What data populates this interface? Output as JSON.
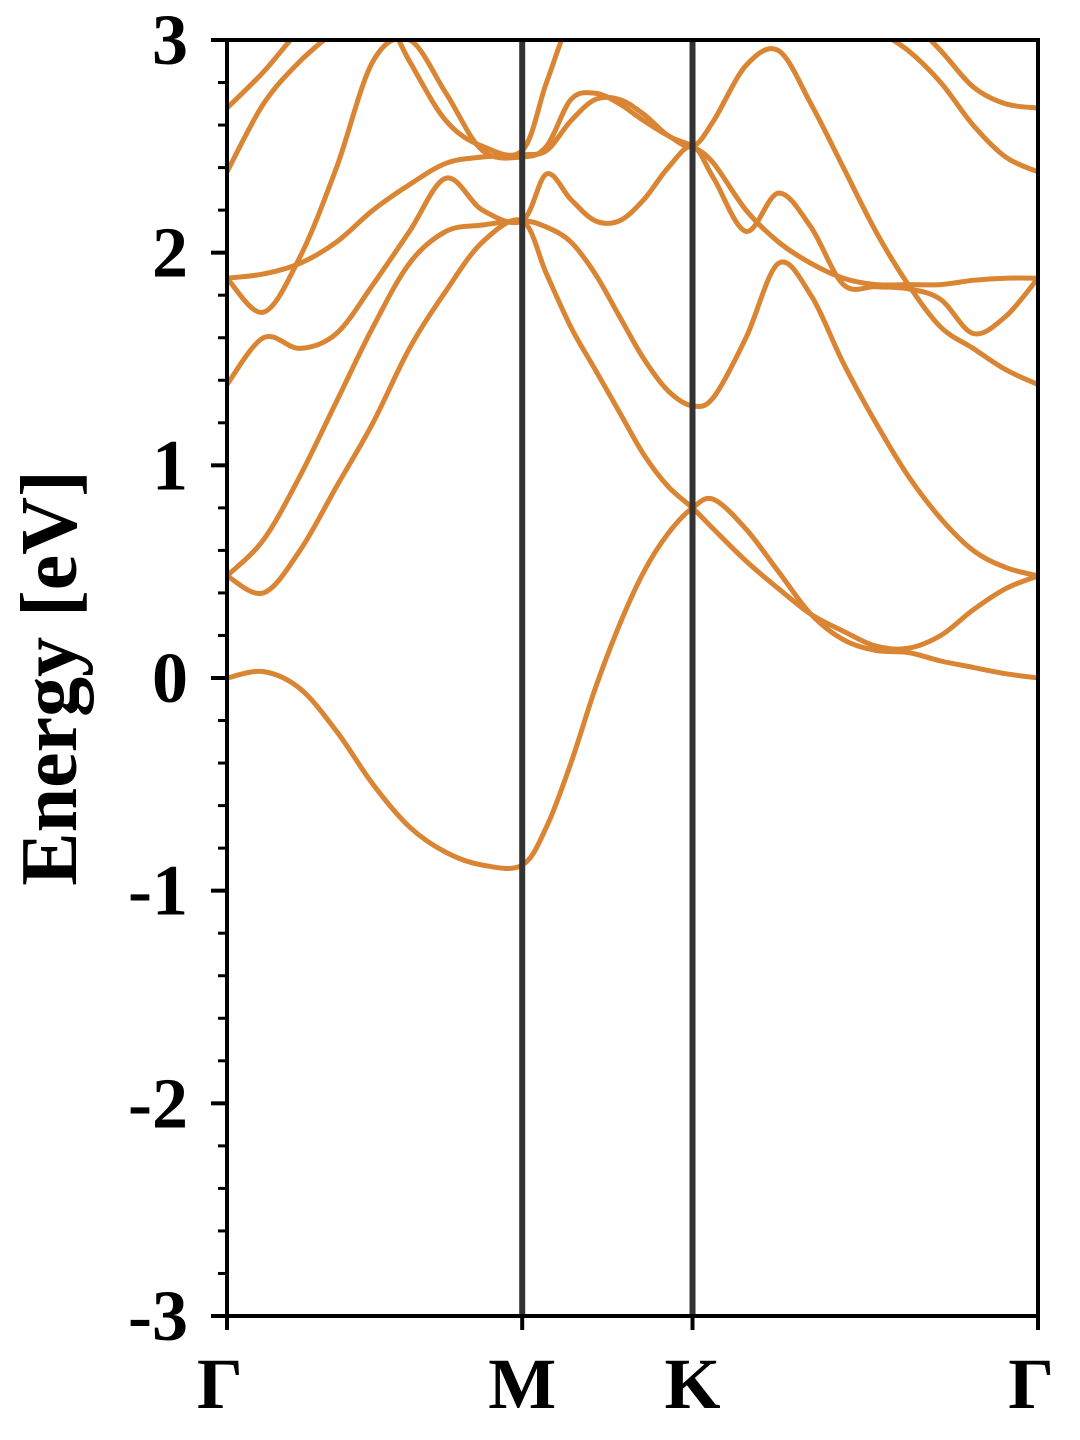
{
  "chart_data": {
    "type": "line",
    "title": "",
    "xlabel": "",
    "ylabel": "Energy [eV]",
    "ylim": [
      -3,
      3
    ],
    "y_ticks": [
      "-3",
      "-2",
      "-1",
      "0",
      "1",
      "2",
      "3"
    ],
    "x_ticks": [
      {
        "label": "Γ",
        "x": 0
      },
      {
        "label": "M",
        "x": 0.364
      },
      {
        "label": "K",
        "x": 0.574
      },
      {
        "label": "Γ",
        "x": 1
      }
    ],
    "grid": false,
    "legend": "none",
    "colors": {
      "band": "#D98533",
      "kpath": "#333333",
      "axes": "#000000"
    },
    "x": [
      0,
      0.045,
      0.09,
      0.135,
      0.18,
      0.225,
      0.27,
      0.315,
      0.364,
      0.394,
      0.424,
      0.454,
      0.484,
      0.514,
      0.544,
      0.574,
      0.6,
      0.64,
      0.68,
      0.72,
      0.76,
      0.8,
      0.84,
      0.88,
      0.92,
      0.96,
      1
    ],
    "series": [
      {
        "values": [
          0,
          0.03,
          -0.05,
          -0.25,
          -0.5,
          -0.7,
          -0.82,
          -0.88,
          -0.88,
          -0.7,
          -0.4,
          -0.05,
          0.25,
          0.5,
          0.68,
          0.8,
          0.84,
          0.7,
          0.5,
          0.3,
          0.18,
          0.13,
          0.12,
          0.08,
          0.05,
          0.02,
          0
        ]
      },
      {
        "values": [
          0.48,
          0.4,
          0.6,
          0.9,
          1.2,
          1.55,
          1.82,
          2.05,
          2.15,
          1.9,
          1.65,
          1.45,
          1.25,
          1.05,
          0.9,
          0.8,
          0.7,
          0.55,
          0.42,
          0.3,
          0.22,
          0.15,
          0.14,
          0.2,
          0.32,
          0.42,
          0.48
        ]
      },
      {
        "values": [
          0.48,
          0.65,
          0.95,
          1.3,
          1.65,
          1.95,
          2.1,
          2.13,
          2.15,
          2.12,
          2.05,
          1.9,
          1.7,
          1.5,
          1.35,
          1.28,
          1.32,
          1.6,
          1.95,
          1.8,
          1.48,
          1.2,
          0.95,
          0.75,
          0.6,
          0.52,
          0.48
        ]
      },
      {
        "values": [
          1.38,
          1.6,
          1.55,
          1.62,
          1.85,
          2.1,
          2.35,
          2.2,
          2.15,
          2.37,
          2.25,
          2.15,
          2.15,
          2.25,
          2.4,
          2.5,
          2.35,
          2.1,
          2.28,
          2.12,
          1.85,
          1.84,
          1.83,
          1.78,
          1.62,
          1.7,
          1.88
        ]
      },
      {
        "values": [
          1.88,
          1.72,
          1.98,
          2.4,
          2.9,
          3.0,
          2.75,
          2.48,
          2.45,
          2.5,
          2.72,
          2.75,
          2.7,
          2.62,
          2.55,
          2.5,
          2.62,
          2.88,
          2.95,
          2.7,
          2.4,
          2.1,
          1.85,
          1.65,
          1.55,
          1.45,
          1.38
        ]
      },
      {
        "values": [
          1.88,
          1.9,
          1.95,
          2.05,
          2.2,
          2.32,
          2.42,
          2.45,
          2.46,
          2.48,
          2.62,
          2.72,
          2.72,
          2.65,
          2.55,
          2.5,
          2.42,
          2.2,
          2.05,
          1.95,
          1.88,
          1.85,
          1.85,
          1.85,
          1.87,
          1.88,
          1.88
        ]
      },
      {
        "values": [
          2.38,
          2.7,
          2.9,
          3.05,
          3.2,
          2.9,
          2.62,
          2.5,
          2.48,
          2.8,
          3.1,
          3.2,
          3.2,
          3.2,
          3.2,
          3.2,
          3.2,
          3.2,
          3.2,
          3.2,
          3.15,
          3.05,
          2.95,
          2.8,
          2.6,
          2.45,
          2.38
        ]
      },
      {
        "values": [
          2.68,
          2.85,
          3.05,
          3.2,
          3.2,
          3.2,
          3.2,
          3.2,
          3.2,
          3.2,
          3.2,
          3.2,
          3.2,
          3.2,
          3.2,
          3.2,
          3.2,
          3.2,
          3.2,
          3.2,
          3.2,
          3.2,
          3.1,
          2.95,
          2.78,
          2.7,
          2.68
        ]
      }
    ]
  }
}
